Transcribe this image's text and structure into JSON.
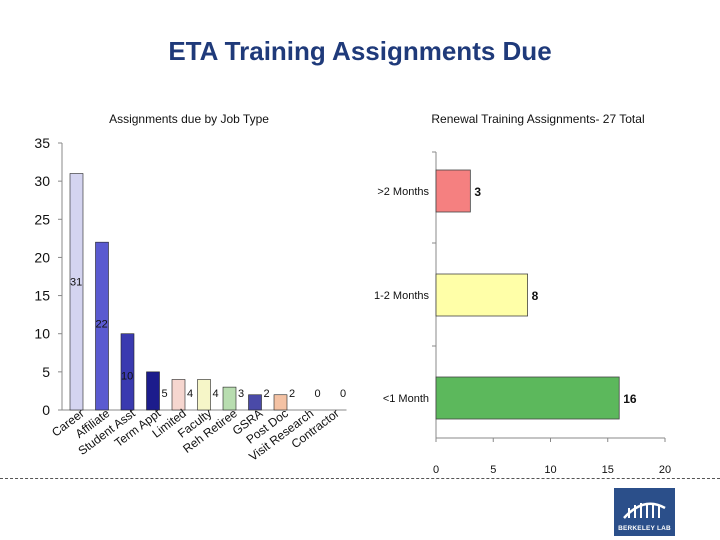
{
  "slide": {
    "title": "ETA Training Assignments Due",
    "logo_text": "BERKELEY LAB"
  },
  "colors": {
    "title": "#1f3a7a",
    "axis": "#888888",
    "logo_bg": "#2b4f8a"
  },
  "chart_data": [
    {
      "type": "bar",
      "title": "Assignments due by Job Type",
      "xlabel": "",
      "ylabel": "",
      "categories": [
        "Career",
        "Affiliate",
        "Student Asst",
        "Term Appt",
        "Limited",
        "Faculty",
        "Reh Retiree",
        "GSRA",
        "Post Doc",
        "Visit Research",
        "Contractor"
      ],
      "values": [
        31,
        22,
        10,
        5,
        4,
        4,
        3,
        2,
        2,
        0,
        0
      ],
      "data_labels": [
        "31",
        "22",
        "10",
        "5",
        "4",
        "4",
        "3",
        "2",
        "2",
        "0",
        "0"
      ],
      "colors": [
        "#d4d4f0",
        "#5a5ad0",
        "#3a3ab0",
        "#1c1c8c",
        "#f6d6cf",
        "#f6f6c8",
        "#b8ddb0",
        "#4a4aa8",
        "#f4c2a4",
        "#2848a8",
        "#a8c8e8"
      ],
      "ylim": [
        0,
        35
      ],
      "yticks": [
        0,
        5,
        10,
        15,
        20,
        25,
        30,
        35
      ],
      "grid": false,
      "legend": "none"
    },
    {
      "type": "bar",
      "orientation": "horizontal",
      "title": "Renewal Training Assignments- 27 Total",
      "xlabel": "",
      "ylabel": "",
      "categories": [
        ">2 Months",
        "1-2 Months",
        "<1 Month"
      ],
      "values": [
        3,
        8,
        16
      ],
      "data_labels": [
        "3",
        "8",
        "16"
      ],
      "colors": [
        "#f58080",
        "#ffffa8",
        "#5cb85c"
      ],
      "xlim": [
        0,
        20
      ],
      "xticks": [
        0,
        5,
        10,
        15,
        20
      ],
      "grid": false,
      "legend": "none"
    }
  ]
}
